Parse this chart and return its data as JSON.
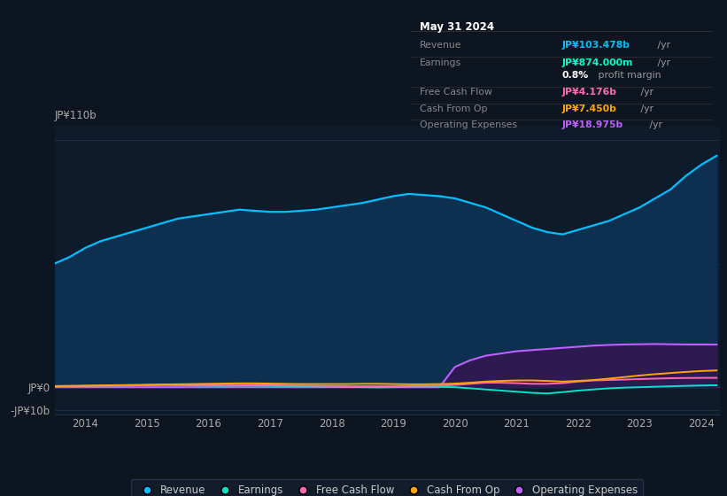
{
  "background_color": "#0d1520",
  "chart_bg_color": "#0d1b2a",
  "title_box": {
    "date": "May 31 2024",
    "rows": [
      {
        "label": "Revenue",
        "value": "JP¥103.478b",
        "value_color": "#00bfff",
        "suffix": " /yr"
      },
      {
        "label": "Earnings",
        "value": "JP¥874.000m",
        "value_color": "#00ffcc",
        "suffix": " /yr"
      },
      {
        "label": "",
        "value": "0.8%",
        "value_color": "#ffffff",
        "suffix": " profit margin"
      },
      {
        "label": "Free Cash Flow",
        "value": "JP¥4.176b",
        "value_color": "#ff69b4",
        "suffix": " /yr"
      },
      {
        "label": "Cash From Op",
        "value": "JP¥7.450b",
        "value_color": "#ffa500",
        "suffix": " /yr"
      },
      {
        "label": "Operating Expenses",
        "value": "JP¥18.975b",
        "value_color": "#bf5fff",
        "suffix": " /yr"
      }
    ]
  },
  "years": [
    2013.5,
    2013.75,
    2014.0,
    2014.25,
    2014.5,
    2014.75,
    2015.0,
    2015.25,
    2015.5,
    2015.75,
    2016.0,
    2016.25,
    2016.5,
    2016.75,
    2017.0,
    2017.25,
    2017.5,
    2017.75,
    2018.0,
    2018.25,
    2018.5,
    2018.75,
    2019.0,
    2019.25,
    2019.5,
    2019.75,
    2020.0,
    2020.25,
    2020.5,
    2020.75,
    2021.0,
    2021.25,
    2021.5,
    2021.75,
    2022.0,
    2022.25,
    2022.5,
    2022.75,
    2023.0,
    2023.25,
    2023.5,
    2023.75,
    2024.0,
    2024.25
  ],
  "revenue": [
    55,
    58,
    62,
    65,
    67,
    69,
    71,
    73,
    75,
    76,
    77,
    78,
    79,
    78.5,
    78,
    78,
    78.5,
    79,
    80,
    81,
    82,
    83.5,
    85,
    86,
    85.5,
    85,
    84,
    82,
    80,
    77,
    74,
    71,
    69,
    68,
    70,
    72,
    74,
    77,
    80,
    84,
    88,
    94,
    99,
    103
  ],
  "earnings": [
    0.3,
    0.4,
    0.5,
    0.6,
    0.7,
    0.8,
    0.9,
    1.0,
    0.9,
    0.8,
    0.7,
    0.6,
    0.7,
    0.7,
    0.6,
    0.5,
    0.4,
    0.3,
    0.2,
    0.1,
    0.0,
    -0.1,
    0.0,
    0.1,
    0.2,
    0.1,
    0.0,
    -0.5,
    -1.0,
    -1.5,
    -2.0,
    -2.5,
    -2.8,
    -2.2,
    -1.5,
    -1.0,
    -0.5,
    -0.2,
    0.0,
    0.2,
    0.4,
    0.6,
    0.75,
    0.87
  ],
  "free_cash_flow": [
    0.3,
    0.4,
    0.5,
    0.6,
    0.7,
    0.8,
    0.9,
    1.0,
    1.0,
    1.0,
    0.9,
    0.8,
    0.8,
    0.9,
    0.9,
    0.8,
    0.7,
    0.6,
    0.5,
    0.4,
    0.4,
    0.4,
    0.4,
    0.5,
    0.6,
    0.7,
    1.0,
    1.5,
    2.0,
    2.0,
    1.8,
    1.5,
    1.5,
    1.8,
    2.5,
    3.0,
    3.2,
    3.4,
    3.6,
    3.8,
    4.0,
    4.1,
    4.15,
    4.176
  ],
  "cash_from_op": [
    0.5,
    0.6,
    0.7,
    0.8,
    0.9,
    1.0,
    1.1,
    1.2,
    1.3,
    1.4,
    1.5,
    1.6,
    1.7,
    1.7,
    1.6,
    1.5,
    1.4,
    1.4,
    1.4,
    1.4,
    1.5,
    1.5,
    1.4,
    1.3,
    1.3,
    1.4,
    1.6,
    2.0,
    2.5,
    2.8,
    3.0,
    3.0,
    2.8,
    2.5,
    2.8,
    3.2,
    3.8,
    4.5,
    5.2,
    5.8,
    6.3,
    6.8,
    7.2,
    7.45
  ],
  "operating_expenses": [
    0,
    0,
    0,
    0,
    0,
    0,
    0,
    0,
    0,
    0,
    0,
    0,
    0,
    0,
    0,
    0,
    0,
    0,
    0,
    0,
    0,
    0,
    0,
    0,
    0,
    0,
    9,
    12,
    14,
    15,
    16,
    16.5,
    17,
    17.5,
    18,
    18.5,
    18.8,
    19.0,
    19.1,
    19.2,
    19.1,
    19.0,
    19.0,
    18.975
  ],
  "ylim": [
    -12,
    116
  ],
  "xtick_years": [
    2014,
    2015,
    2016,
    2017,
    2018,
    2019,
    2020,
    2021,
    2022,
    2023,
    2024
  ],
  "revenue_color": "#00bfff",
  "revenue_fill": "#0d3050",
  "earnings_color": "#00e5cc",
  "fcf_color": "#ff69b4",
  "cfo_color": "#ffa500",
  "opex_color": "#bf5fff",
  "opex_fill": "#2d1a50",
  "legend_labels": [
    "Revenue",
    "Earnings",
    "Free Cash Flow",
    "Cash From Op",
    "Operating Expenses"
  ],
  "legend_colors": [
    "#00bfff",
    "#00e5cc",
    "#ff69b4",
    "#ffa500",
    "#bf5fff"
  ],
  "grid_color": "#1e3045",
  "text_color": "#aaaaaa"
}
